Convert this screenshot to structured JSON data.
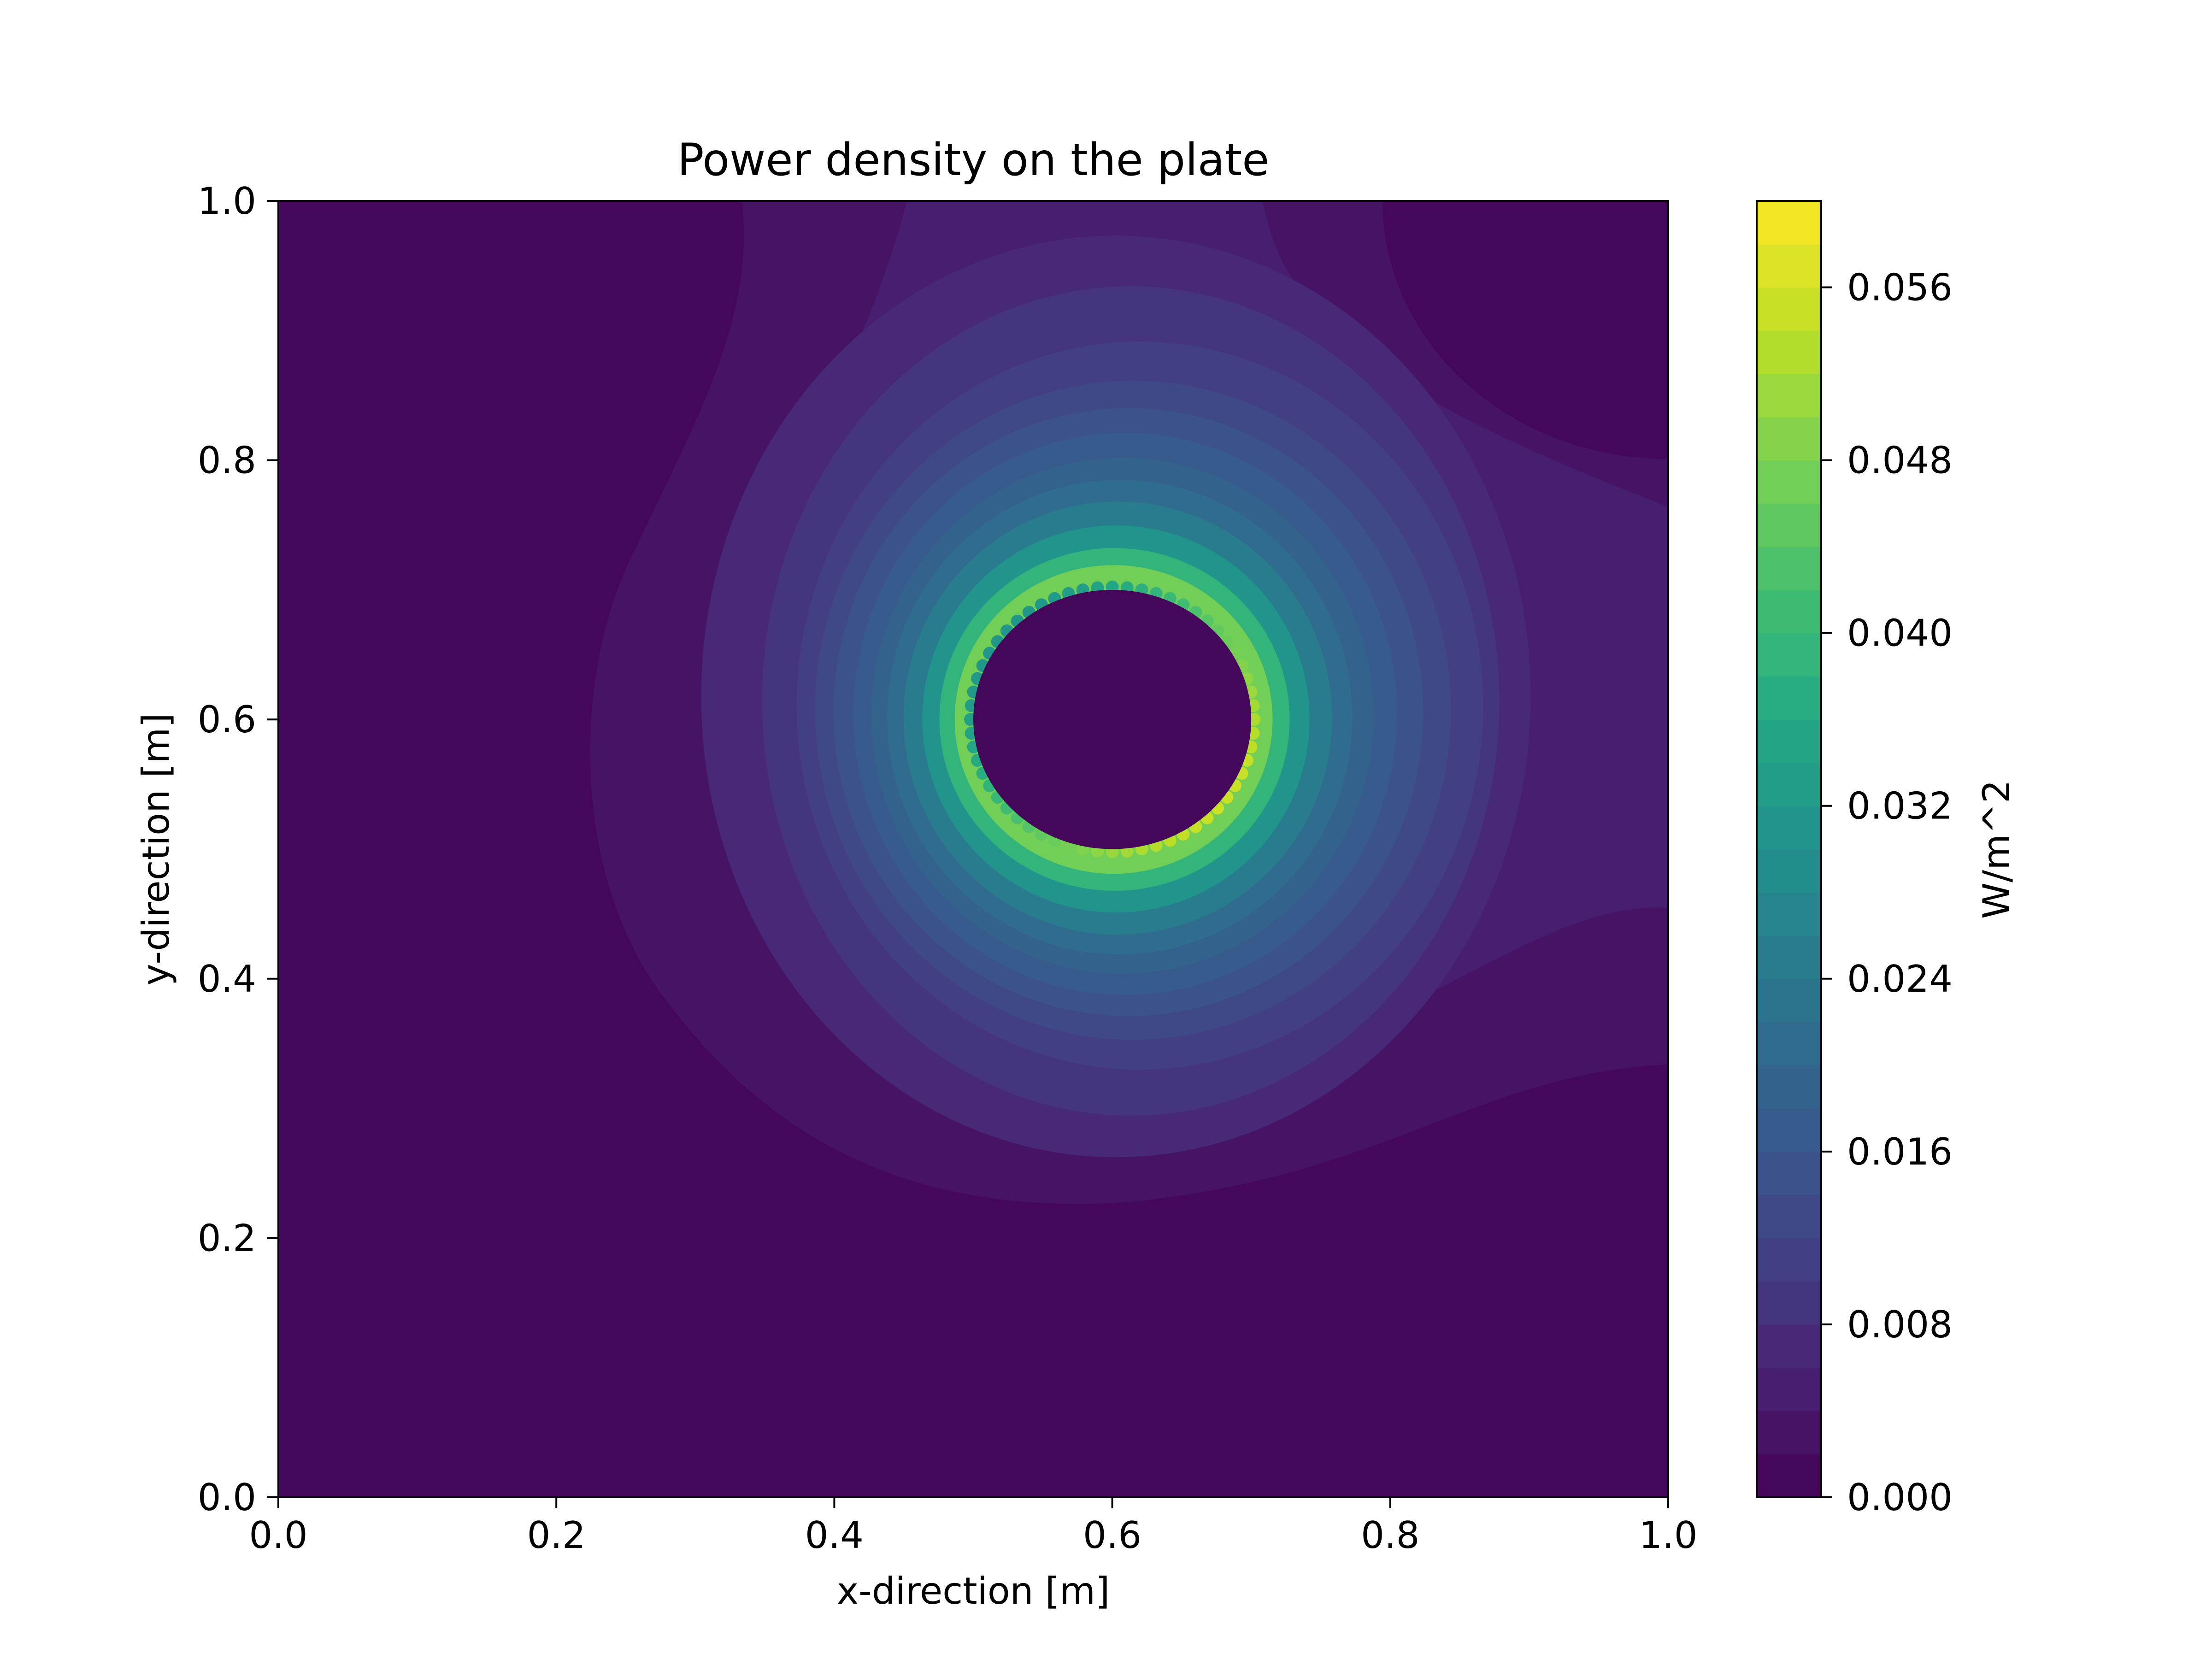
{
  "chart_data": {
    "type": "contourf",
    "title": "Power density on the plate",
    "xlabel": "x-direction [m]",
    "ylabel": "y-direction [m]",
    "xlim": [
      0.0,
      1.0
    ],
    "ylim": [
      0.0,
      1.0
    ],
    "x_ticks": [
      "0.0",
      "0.2",
      "0.4",
      "0.6",
      "0.8",
      "1.0"
    ],
    "y_ticks": [
      "0.0",
      "0.2",
      "0.4",
      "0.6",
      "0.8",
      "1.0"
    ],
    "grid": false,
    "colormap": "viridis",
    "colorbar": {
      "label": "W/m^2",
      "range": [
        0.0,
        0.06
      ],
      "ticks": [
        "0.000",
        "0.008",
        "0.016",
        "0.024",
        "0.032",
        "0.040",
        "0.048",
        "0.056"
      ],
      "level_step": 0.002
    },
    "hole": {
      "center": [
        0.6,
        0.6
      ],
      "radius": 0.1,
      "value": 0.0
    },
    "contour_regions": [
      {
        "level": 0.002,
        "note": "large outer band spanning x 0.22-1.0"
      },
      {
        "level": 0.004,
        "note": "band around hole, x 0.33-0.92"
      },
      {
        "level": 0.006,
        "note": "band around hole, x 0.37-0.85"
      },
      {
        "level": 0.008,
        "note": "band around hole, x 0.41-0.80"
      },
      {
        "level": 0.01
      },
      {
        "level": 0.012
      },
      {
        "level": 0.014
      },
      {
        "level": 0.016
      },
      {
        "level": 0.018
      },
      {
        "level": 0.02
      },
      {
        "level": 0.024
      },
      {
        "level": 0.03
      },
      {
        "level": 0.038
      },
      {
        "level": 0.046
      }
    ],
    "low_region_top_right": {
      "center": [
        1.0,
        1.0
      ],
      "value": 0.0
    }
  }
}
